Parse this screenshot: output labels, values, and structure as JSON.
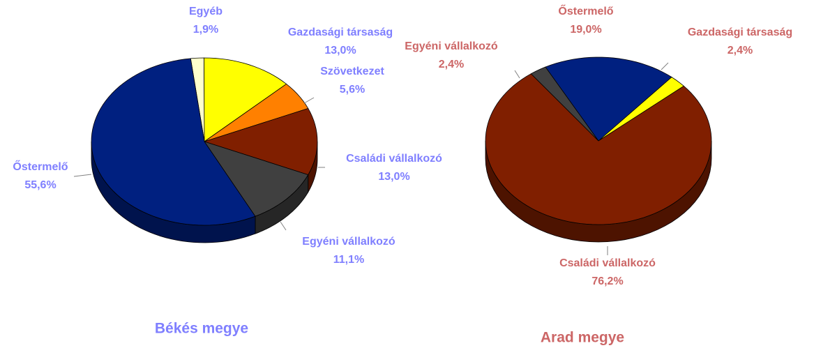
{
  "chart_data": [
    {
      "type": "pie",
      "title": "Békés megye",
      "label_color": "#7f7fff",
      "categories": [
        "Egyéb",
        "Gazdasági társaság",
        "Szövetkezet",
        "Családi vállalkozó",
        "Egyéni vállalkozó",
        "Őstermelő"
      ],
      "values": [
        1.9,
        13.0,
        5.6,
        13.0,
        11.1,
        55.6
      ],
      "value_labels": [
        "1,9%",
        "13,0%",
        "5,6%",
        "13,0%",
        "11,1%",
        "55,6%"
      ],
      "colors": [
        "#ffffcc",
        "#ffff00",
        "#ff8000",
        "#801f00",
        "#404040",
        "#002080"
      ]
    },
    {
      "type": "pie",
      "title": "Arad megye",
      "label_color": "#cc6666",
      "categories": [
        "Őstermelő",
        "Gazdasági társaság",
        "Családi vállalkozó",
        "Egyéni vállalkozó"
      ],
      "values": [
        19.0,
        2.4,
        76.2,
        2.4
      ],
      "value_labels": [
        "19,0%",
        "2,4%",
        "76,2%",
        "2,4%"
      ],
      "colors": [
        "#002080",
        "#ffff00",
        "#801f00",
        "#404040"
      ]
    }
  ]
}
